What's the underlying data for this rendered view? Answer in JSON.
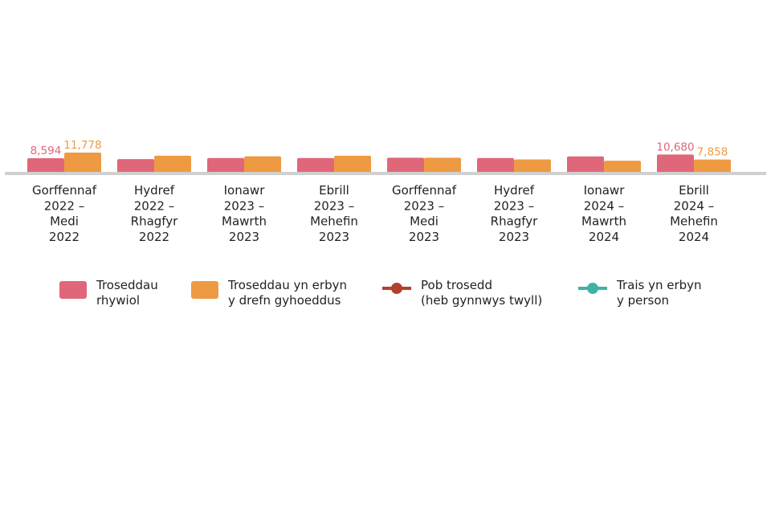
{
  "chart_data": {
    "type": "bar",
    "categories": [
      [
        "Gorffennaf",
        "2022 –",
        "Medi",
        "2022"
      ],
      [
        "Hydref",
        "2022 –",
        "Rhagfyr",
        "2022"
      ],
      [
        "Ionawr",
        "2023 –",
        "Mawrth",
        "2023"
      ],
      [
        "Ebrill",
        "2023 –",
        "Mehefin",
        "2023"
      ],
      [
        "Gorffennaf",
        "2023 –",
        "Medi",
        "2023"
      ],
      [
        "Hydref",
        "2023 –",
        "Rhagfyr",
        "2023"
      ],
      [
        "Ionawr",
        "2024 –",
        "Mawrth",
        "2024"
      ],
      [
        "Ebrill",
        "2024 –",
        "Mehefin",
        "2024"
      ]
    ],
    "series": [
      {
        "name": "Troseddau rhywiol",
        "color": "#e0677a",
        "values": [
          8594,
          8100,
          8700,
          8700,
          8900,
          8700,
          9600,
          10680
        ],
        "labels": [
          "8,594",
          "",
          "",
          "",
          "",
          "",
          "",
          "10,680"
        ]
      },
      {
        "name": "Troseddau yn erbyn y drefn gyhoeddus",
        "color": "#ee9a43",
        "values": [
          11778,
          10000,
          9700,
          10000,
          8900,
          7900,
          7200,
          7858
        ],
        "labels": [
          "11,778",
          "",
          "",
          "",
          "",
          "",
          "",
          "7,858"
        ]
      }
    ],
    "legend": [
      {
        "name": "Troseddau\nrhywiol",
        "kind": "bar",
        "color": "#e0677a"
      },
      {
        "name": "Troseddau yn erbyn\ny drefn gyhoeddus",
        "kind": "bar",
        "color": "#ee9a43"
      },
      {
        "name": "Pob trosedd\n(heb gynnwys twyll)",
        "kind": "line",
        "color": "#b5402e"
      },
      {
        "name": "Trais yn erbyn\ny person",
        "kind": "line",
        "color": "#3fb2a5"
      }
    ],
    "legend_position": "bottom",
    "grid": false,
    "ylim": [
      0,
      12000
    ],
    "axis_color": "#d0d0d0"
  }
}
